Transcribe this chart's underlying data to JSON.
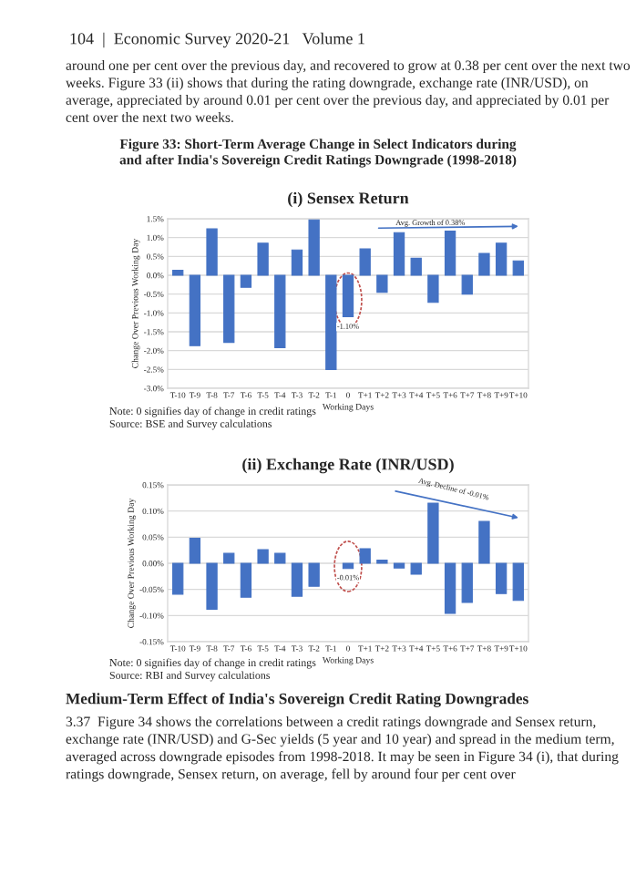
{
  "chart_data": [
    {
      "type": "bar",
      "title": "(i) Sensex Return",
      "xlabel": "Working Days",
      "ylabel": "Change Over Previous Working Day",
      "categories": [
        "T-10",
        "T-9",
        "T-8",
        "T-7",
        "T-6",
        "T-5",
        "T-4",
        "T-3",
        "T-2",
        "T-1",
        "0",
        "T+1",
        "T+2",
        "T+3",
        "T+4",
        "T+5",
        "T+6",
        "T+7",
        "T+8",
        "T+9",
        "T+10"
      ],
      "values": [
        0.13,
        -1.87,
        1.23,
        -1.78,
        -0.32,
        0.85,
        -1.92,
        0.67,
        1.47,
        -2.5,
        -1.1,
        0.7,
        -0.45,
        1.13,
        0.45,
        -0.72,
        1.17,
        -0.5,
        0.58,
        0.85,
        0.38
      ],
      "color": "#4472c4",
      "ylim": [
        -3.0,
        1.5
      ],
      "yticks": [
        {
          "value": -3.0,
          "label": "-3.0%"
        },
        {
          "value": -2.5,
          "label": "-2.5%"
        },
        {
          "value": -2.0,
          "label": "-2.0%"
        },
        {
          "value": -1.5,
          "label": "-1.5%"
        },
        {
          "value": -1.0,
          "label": "-1.0%"
        },
        {
          "value": -0.5,
          "label": "-0.5%"
        },
        {
          "value": 0.0,
          "label": "0.0%"
        },
        {
          "value": 0.5,
          "label": "0.5%"
        },
        {
          "value": 1.0,
          "label": "1.0%"
        },
        {
          "value": 1.5,
          "label": "1.5%"
        }
      ],
      "grid": "y",
      "annotations": [
        "104  |  Economic Survey 2020-21   Volume 1",
        "around one per cent over the previous day, and recovered to grow at 0.38 per cent over the next two weeks. Figure 33 (ii) shows that during the rating downgrade, exchange rate (INR/USD), on average, appreciated by around 0.01 per cent over the previous day, and appreciated by 0.01 per cent over the next two weeks.",
        "Figure 33: Short-Term Average Change in Select Indicators during\nand after India's Sovereign Credit Ratings Downgrade (1998-2018)",
        "Note: 0 signifies day of change in credit ratings",
        "Source: BSE and Survey calculations",
        "Avg. Growth of 0.38%",
        {
          "text": "-1.10%",
          "x": "0",
          "y": -1.1
        }
      ]
    },
    {
      "type": "bar",
      "title": "(ii) Exchange Rate (INR/USD)",
      "xlabel": "Working Days",
      "ylabel": "Change Over Previous Working Day",
      "categories": [
        "T-10",
        "T-9",
        "T-8",
        "T-7",
        "T-6",
        "T-5",
        "T-4",
        "T-3",
        "T-2",
        "T-1",
        "0",
        "T+1",
        "T+2",
        "T+3",
        "T+4",
        "T+5",
        "T+6",
        "T+7",
        "T+8",
        "T+9",
        "T+10"
      ],
      "values": [
        -0.059,
        0.048,
        -0.088,
        0.019,
        -0.065,
        0.026,
        0.019,
        -0.063,
        -0.044,
        null,
        -0.01,
        0.028,
        0.006,
        -0.009,
        -0.021,
        0.115,
        -0.096,
        -0.075,
        0.08,
        -0.058,
        -0.071
      ],
      "color": "#4472c4",
      "ylim": [
        -0.15,
        0.15
      ],
      "yticks": [
        {
          "value": -0.15,
          "label": "-0.15%"
        },
        {
          "value": -0.1,
          "label": "-0.10%"
        },
        {
          "value": -0.05,
          "label": "-0.05%"
        },
        {
          "value": 0.0,
          "label": "0.00%"
        },
        {
          "value": 0.05,
          "label": "0.05%"
        },
        {
          "value": 0.1,
          "label": "0.10%"
        },
        {
          "value": 0.15,
          "label": "0.15%"
        }
      ],
      "grid": "y",
      "annotations": [
        "Note: 0 signifies day of change in credit ratings",
        "Source: RBI and Survey calculations",
        "Medium-Term Effect of India's Sovereign Credit Rating Downgrades",
        "3.37  Figure 34 shows the correlations between a credit ratings downgrade and Sensex return, exchange rate (INR/USD) and G-Sec yields (5 year and 10 year) and spread in the medium term, averaged across downgrade episodes from 1998-2018. It may be seen in Figure 34 (i), that during ratings downgrade, Sensex return, on average, fell by around four per cent over",
        "Avg. Decline of -0.01%",
        {
          "text": "-0.01%",
          "x": "0",
          "y": -0.01
        }
      ]
    }
  ]
}
